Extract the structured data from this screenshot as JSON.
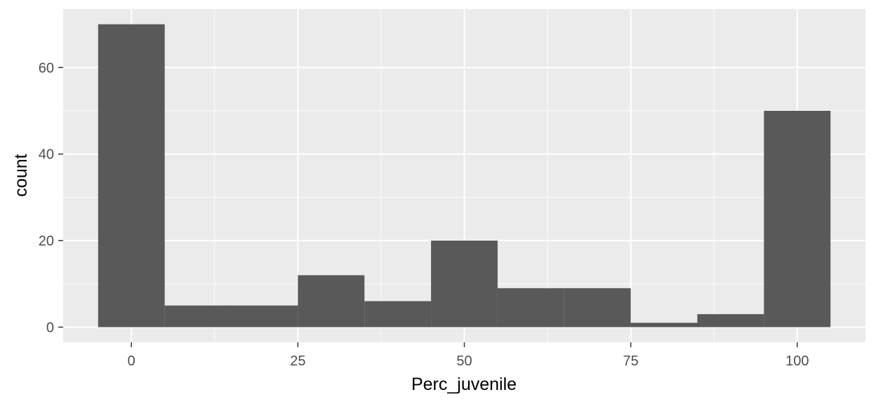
{
  "chart_data": {
    "type": "bar",
    "subtype": "histogram",
    "title": "",
    "xlabel": "Perc_juvenile",
    "ylabel": "count",
    "bins": [
      {
        "x_min": -5,
        "x_max": 5,
        "count": 70
      },
      {
        "x_min": 5,
        "x_max": 15,
        "count": 5
      },
      {
        "x_min": 15,
        "x_max": 25,
        "count": 5
      },
      {
        "x_min": 25,
        "x_max": 35,
        "count": 12
      },
      {
        "x_min": 35,
        "x_max": 45,
        "count": 6
      },
      {
        "x_min": 45,
        "x_max": 55,
        "count": 20
      },
      {
        "x_min": 55,
        "x_max": 65,
        "count": 9
      },
      {
        "x_min": 65,
        "x_max": 75,
        "count": 9
      },
      {
        "x_min": 75,
        "x_max": 85,
        "count": 1
      },
      {
        "x_min": 85,
        "x_max": 95,
        "count": 3
      },
      {
        "x_min": 95,
        "x_max": 105,
        "count": 50
      }
    ],
    "xlim": [
      -10.25,
      110.25
    ],
    "ylim": [
      -3.5,
      73.5
    ],
    "x_ticks": [
      0,
      25,
      50,
      75,
      100
    ],
    "x_tick_labels": [
      "0",
      "25",
      "50",
      "75",
      "100"
    ],
    "y_ticks": [
      0,
      20,
      40,
      60
    ],
    "y_tick_labels": [
      "0",
      "20",
      "40",
      "60"
    ],
    "grid": true,
    "legend": "none",
    "colors": {
      "panel_background": "#ebebeb",
      "grid_major": "#ffffff",
      "bar_fill": "#595959",
      "tick_text": "#4d4d4d",
      "tick_mark": "#333333"
    }
  }
}
